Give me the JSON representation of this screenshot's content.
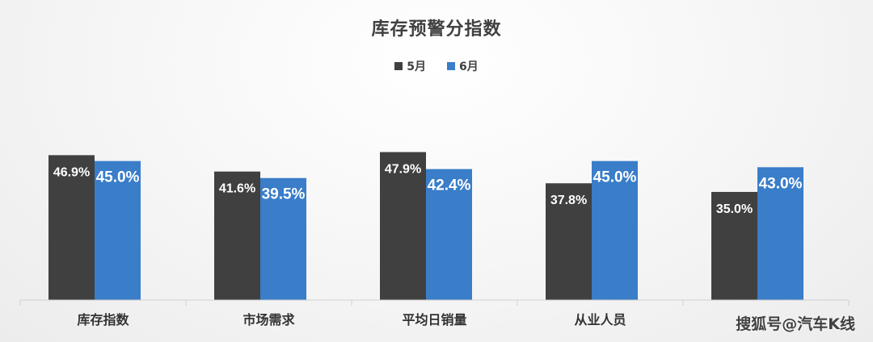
{
  "chart_data": {
    "type": "bar",
    "title": "库存预警分指数",
    "categories": [
      "库存指数",
      "市场需求",
      "平均日销量",
      "从业人员",
      ""
    ],
    "series": [
      {
        "name": "5月",
        "color": "#404040",
        "values": [
          46.9,
          41.6,
          47.9,
          37.8,
          35.0
        ],
        "labels": [
          "46.9%",
          "41.6%",
          "47.9%",
          "37.8%",
          "35.0%"
        ]
      },
      {
        "name": "6月",
        "color": "#3a7dc9",
        "values": [
          45.0,
          39.5,
          42.4,
          45.0,
          43.0
        ],
        "labels": [
          "45.0%",
          "39.5%",
          "42.4%",
          "45.0%",
          "43.0%"
        ]
      }
    ],
    "ylim": [
      0,
      56
    ],
    "grid": false,
    "legend_position": "top-center"
  },
  "watermark": "搜狐号@汽车K线"
}
